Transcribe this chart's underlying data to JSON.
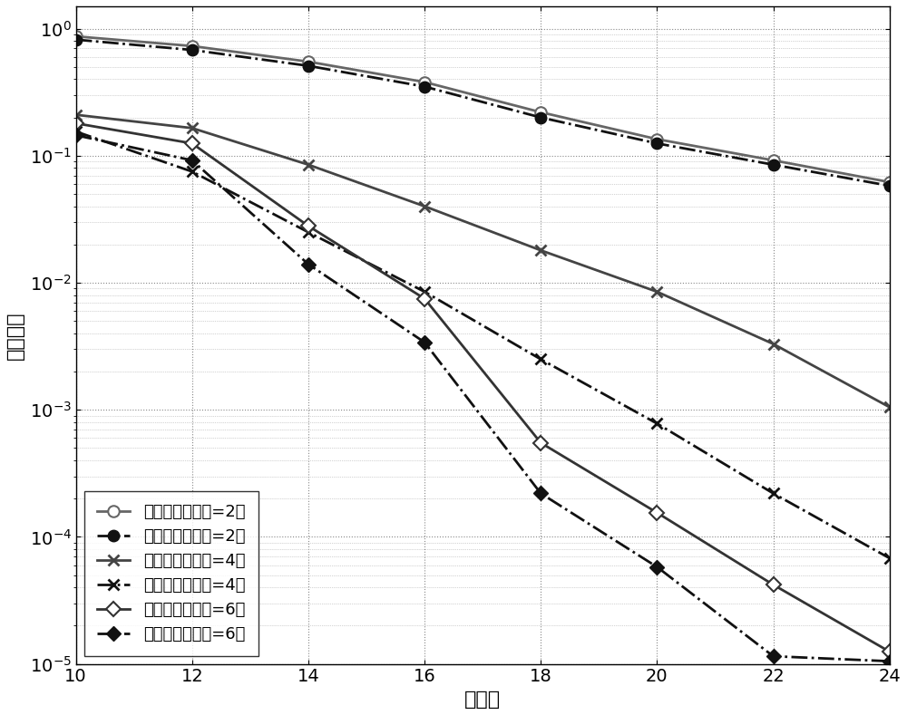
{
  "x": [
    10,
    12,
    14,
    16,
    18,
    20,
    22,
    24
  ],
  "theory_relay2": [
    0.87,
    0.73,
    0.55,
    0.38,
    0.22,
    0.135,
    0.092,
    0.062
  ],
  "sim_relay2": [
    0.82,
    0.68,
    0.51,
    0.35,
    0.2,
    0.125,
    0.085,
    0.058
  ],
  "theory_relay4": [
    0.21,
    0.165,
    0.085,
    0.04,
    0.018,
    0.0085,
    0.0033,
    0.00105
  ],
  "sim_relay4": [
    0.155,
    0.075,
    0.025,
    0.0085,
    0.0025,
    0.00078,
    0.00022,
    6.8e-05
  ],
  "theory_relay6": [
    0.18,
    0.125,
    0.028,
    0.0075,
    0.00055,
    0.000155,
    4.2e-05,
    1.25e-05
  ],
  "sim_relay6": [
    0.145,
    0.092,
    0.014,
    0.0034,
    0.00022,
    5.8e-05,
    1.15e-05,
    1.05e-05
  ],
  "color_dark": "#3a3a3a",
  "color_mid": "#5a5a5a",
  "color_light": "#7a7a7a",
  "xlabel": "总包数",
  "ylabel": "破评概率",
  "ylim_min": 1e-05,
  "ylim_max": 1.5,
  "xlim_min": 10,
  "xlim_max": 24,
  "legend_theory2": "理论值（中继数=2）",
  "legend_sim2": "价真值（中继数=2）",
  "legend_theory4": "理论值（中继数=4）",
  "legend_sim4": "价真值（中继数=4）",
  "legend_theory6": "理论值（中继数=6）",
  "legend_sim6": "价真值（中继数=6）"
}
